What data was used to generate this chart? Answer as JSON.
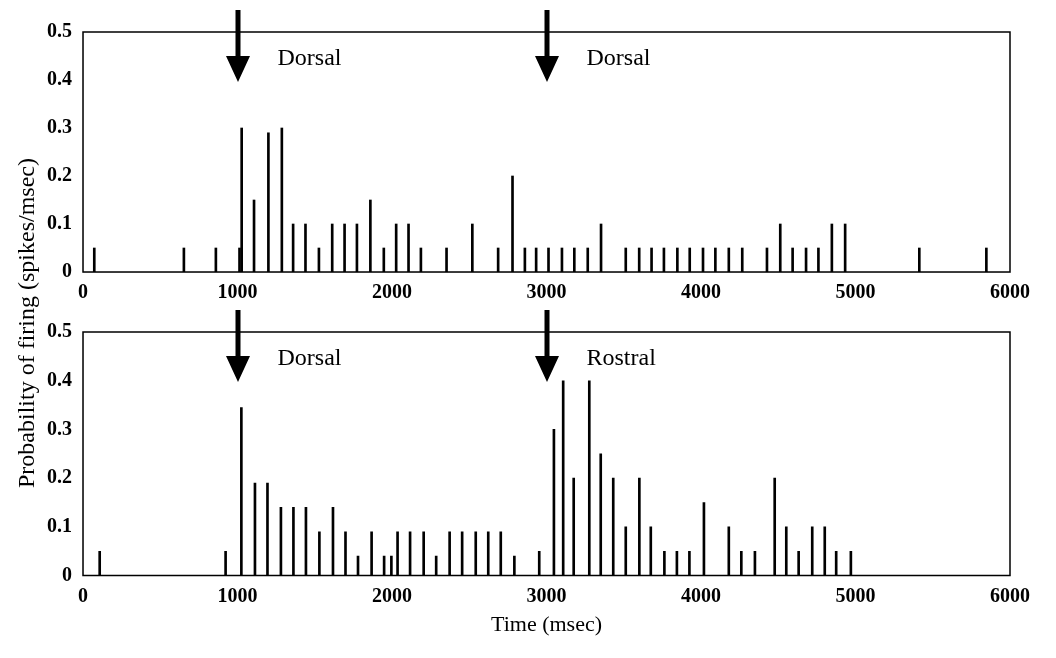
{
  "chart_data": [
    {
      "type": "bar",
      "ylabel": "Probability of firing  (spikes/msec)",
      "color": "#000000",
      "xlim": [
        0,
        6000
      ],
      "xticks": [
        0,
        1000,
        2000,
        3000,
        4000,
        5000,
        6000
      ],
      "ylim": [
        0,
        0.5
      ],
      "yticks": [
        0,
        0.1,
        0.2,
        0.3,
        0.4,
        0.5
      ],
      "x": [
        73,
        653,
        860,
        1013,
        1027,
        1107,
        1200,
        1287,
        1360,
        1440,
        1527,
        1613,
        1693,
        1773,
        1860,
        1947,
        2027,
        2107,
        2187,
        2353,
        2520,
        2687,
        2780,
        2860,
        2933,
        3013,
        3100,
        3180,
        3267,
        3353,
        3513,
        3600,
        3680,
        3760,
        3847,
        3927,
        4013,
        4093,
        4180,
        4267,
        4427,
        4513,
        4593,
        4680,
        4760,
        4847,
        4933,
        5413,
        5847
      ],
      "values": [
        0.05,
        0.05,
        0.05,
        0.05,
        0.3,
        0.15,
        0.29,
        0.3,
        0.1,
        0.1,
        0.05,
        0.1,
        0.1,
        0.1,
        0.15,
        0.05,
        0.1,
        0.1,
        0.05,
        0.05,
        0.1,
        0.05,
        0.2,
        0.05,
        0.05,
        0.05,
        0.05,
        0.05,
        0.05,
        0.1,
        0.05,
        0.05,
        0.05,
        0.05,
        0.05,
        0.05,
        0.05,
        0.05,
        0.05,
        0.05,
        0.05,
        0.1,
        0.05,
        0.05,
        0.05,
        0.1,
        0.1,
        0.05,
        0.05
      ],
      "annotations": [
        "Dorsal",
        "Dorsal"
      ]
    },
    {
      "type": "bar",
      "xlabel": "Time (msec)",
      "color": "#000000",
      "xlim": [
        0,
        6000
      ],
      "xticks": [
        0,
        1000,
        2000,
        3000,
        4000,
        5000,
        6000
      ],
      "ylim": [
        0,
        0.5
      ],
      "yticks": [
        0,
        0.1,
        0.2,
        0.3,
        0.4,
        0.5
      ],
      "x": [
        108,
        923,
        1025,
        1113,
        1194,
        1281,
        1362,
        1443,
        1530,
        1618,
        1699,
        1780,
        1868,
        1949,
        1996,
        2036,
        2117,
        2205,
        2286,
        2373,
        2454,
        2542,
        2623,
        2704,
        2792,
        2953,
        3048,
        3108,
        3176,
        3277,
        3351,
        3432,
        3513,
        3601,
        3675,
        3763,
        3844,
        3925,
        4019,
        4180,
        4261,
        4349,
        4477,
        4552,
        4632,
        4720,
        4801,
        4875,
        4970
      ],
      "values": [
        0.05,
        0.05,
        0.345,
        0.19,
        0.19,
        0.14,
        0.14,
        0.14,
        0.09,
        0.14,
        0.09,
        0.04,
        0.09,
        0.04,
        0.04,
        0.09,
        0.09,
        0.09,
        0.04,
        0.09,
        0.09,
        0.09,
        0.09,
        0.09,
        0.04,
        0.05,
        0.3,
        0.4,
        0.2,
        0.4,
        0.25,
        0.2,
        0.1,
        0.2,
        0.1,
        0.05,
        0.05,
        0.05,
        0.15,
        0.1,
        0.05,
        0.05,
        0.2,
        0.1,
        0.05,
        0.1,
        0.1,
        0.05,
        0.05
      ],
      "annotations": [
        "Dorsal",
        "Rostral"
      ]
    }
  ]
}
